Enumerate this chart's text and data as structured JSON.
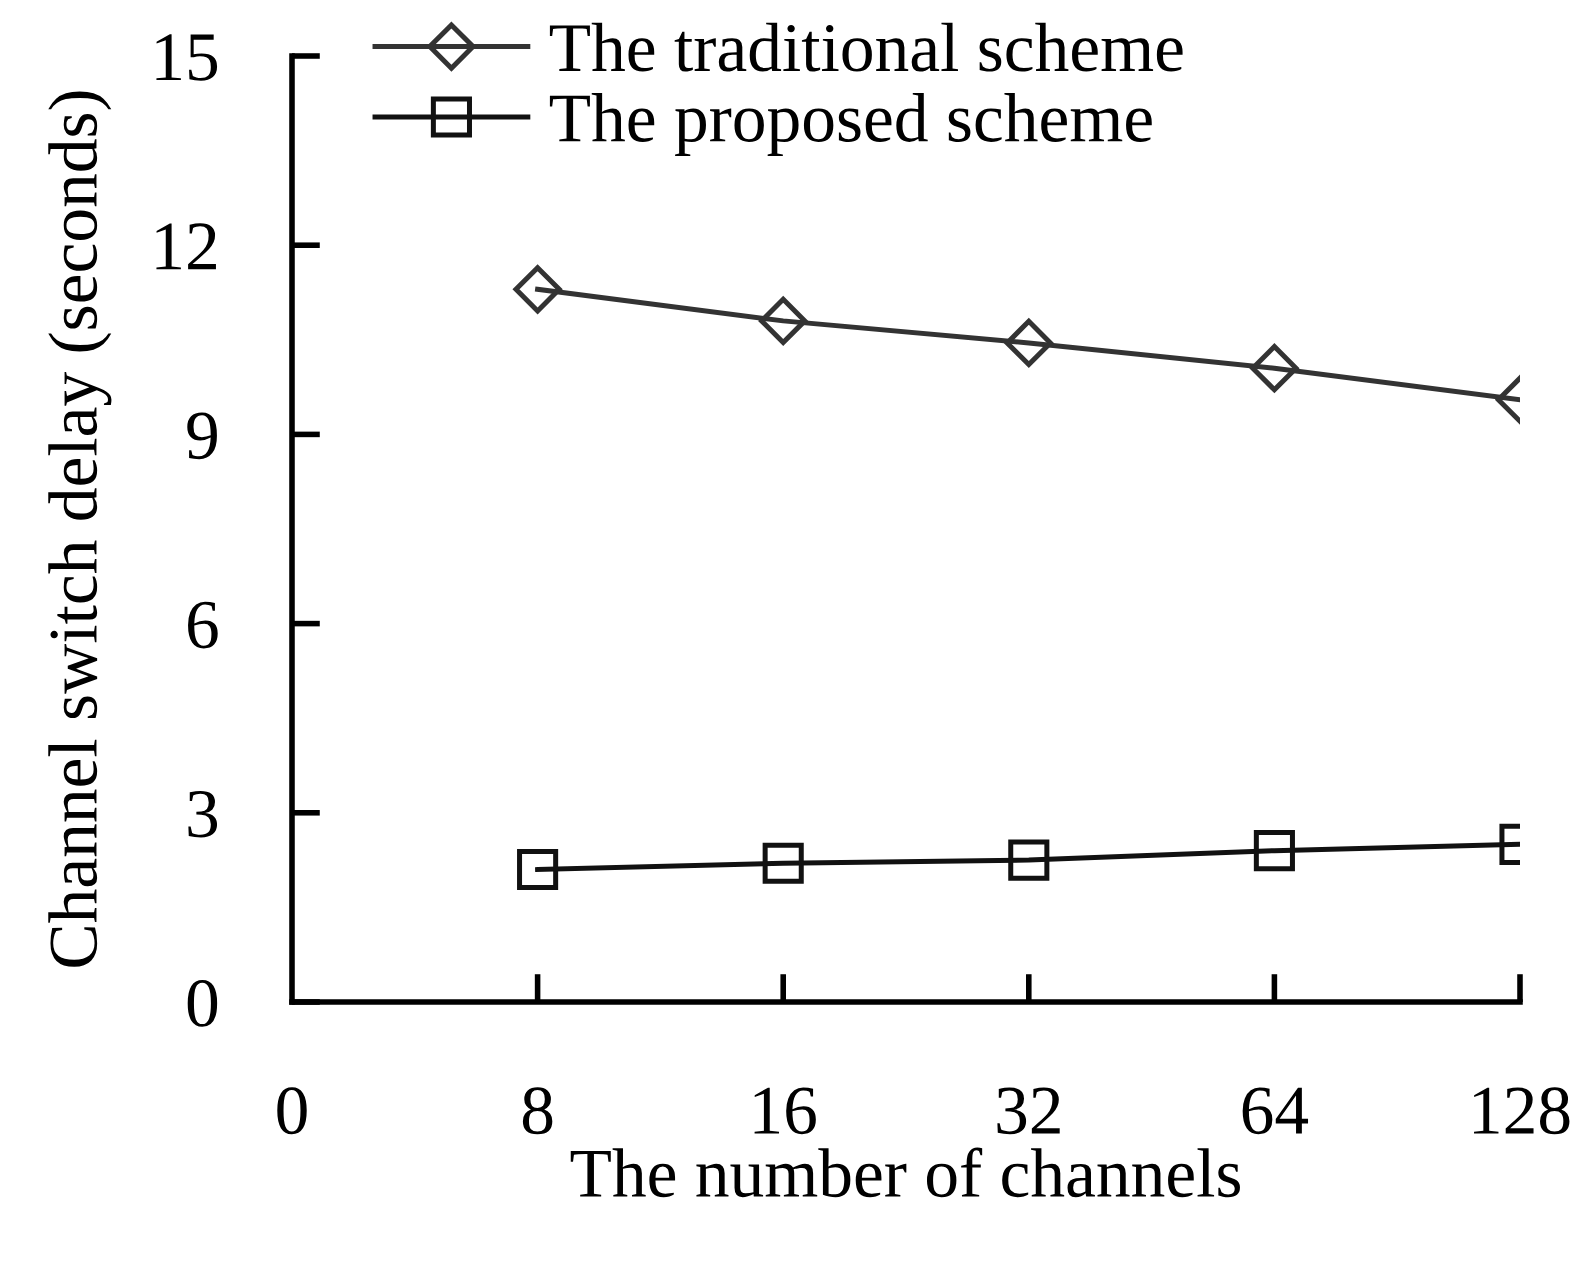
{
  "chart_data": {
    "type": "line",
    "xlabel": "The number of channels",
    "ylabel": "Channel switch delay (seconds)",
    "categories": [
      "0",
      "8",
      "16",
      "32",
      "64",
      "128"
    ],
    "series": [
      {
        "name": "The traditional scheme",
        "color": "#333333",
        "marker": "diamond",
        "values": [
          null,
          11.3,
          10.8,
          10.45,
          10.05,
          9.55
        ]
      },
      {
        "name": "The proposed scheme",
        "color": "#111111",
        "marker": "square",
        "values": [
          null,
          2.1,
          2.2,
          2.25,
          2.4,
          2.5
        ]
      }
    ],
    "ylim": [
      0,
      15
    ],
    "yticks": [
      0,
      3,
      6,
      9,
      12,
      15
    ],
    "grid": false,
    "legend": "top left"
  }
}
